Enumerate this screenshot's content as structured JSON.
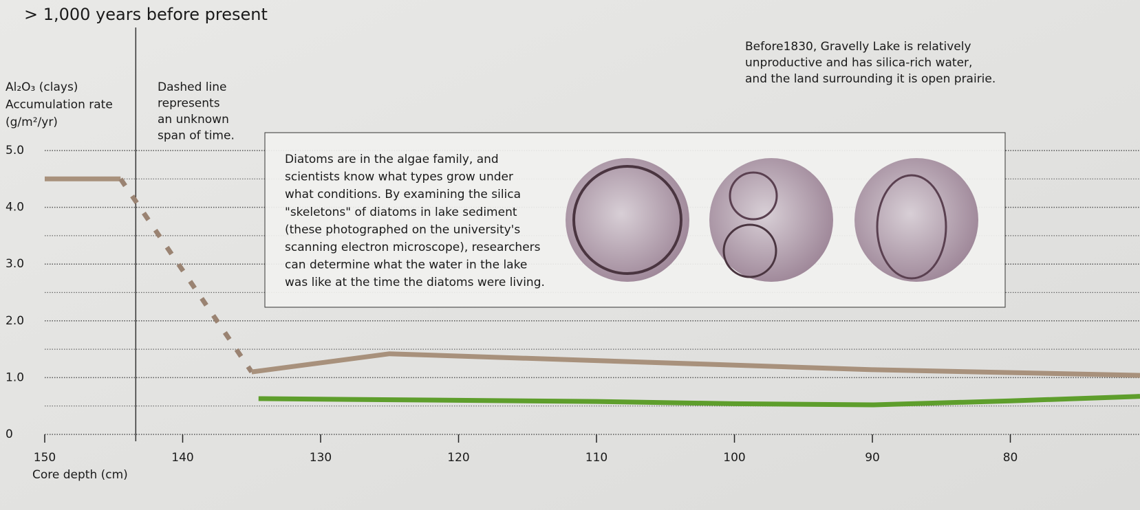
{
  "chart_data": {
    "type": "line",
    "title": "> 1,000 years before present",
    "y_label_lines": [
      "Al₂O₃ (clays)",
      "Accumulation rate",
      "(g/m²/yr)"
    ],
    "x_label": "Core depth (cm)",
    "annotation_lines": [
      "Dashed line",
      "represents",
      "an unknown",
      "span of time."
    ],
    "note_lines": [
      "Before1830, Gravelly Lake is relatively",
      "unproductive and has silica-rich water,",
      "and the land surrounding it is open prairie."
    ],
    "box_lines": [
      "Diatoms are in the algae family, and",
      "scientists know what types grow under",
      "what conditions. By examining the silica",
      "\"skeletons\" of diatoms in lake sediment",
      "(these photographed on the university's",
      "scanning electron microscope), researchers",
      "can determine what the water in the lake",
      "was like at the time the diatoms were living."
    ],
    "xlim": [
      150,
      70.6
    ],
    "xticks": [
      150,
      140,
      130,
      120,
      110,
      100,
      90,
      80
    ],
    "ylim": [
      0,
      5
    ],
    "yticks": [
      0,
      {
        "value": 1,
        "label": "1.0"
      },
      {
        "value": 2,
        "label": "2.0"
      },
      {
        "value": 3,
        "label": "3.0"
      },
      {
        "value": 4,
        "label": "4.0"
      },
      {
        "value": 5,
        "label": "5.0"
      }
    ],
    "minor_yticks": [
      0.5,
      1.5,
      2.5,
      3.5,
      4.5
    ],
    "grid": true,
    "marker_x": 143.4,
    "series": [
      {
        "color": "#a8917c",
        "dashed": false,
        "x": [
          150,
          144.5
        ],
        "values": [
          4.5,
          4.5
        ]
      },
      {
        "color": "#9a8372",
        "dashed": true,
        "x": [
          144.5,
          135
        ],
        "values": [
          4.5,
          1.1
        ]
      },
      {
        "color": "#a8917c",
        "dashed": false,
        "x": [
          135,
          125,
          110,
          90,
          70.6
        ],
        "values": [
          1.1,
          1.42,
          1.3,
          1.14,
          1.04
        ]
      },
      {
        "color": "#5e9e2c",
        "dashed": false,
        "x": [
          134.5,
          110,
          100,
          90,
          80,
          70.6
        ],
        "values": [
          0.63,
          0.58,
          0.54,
          0.52,
          0.59,
          0.67
        ]
      }
    ]
  }
}
